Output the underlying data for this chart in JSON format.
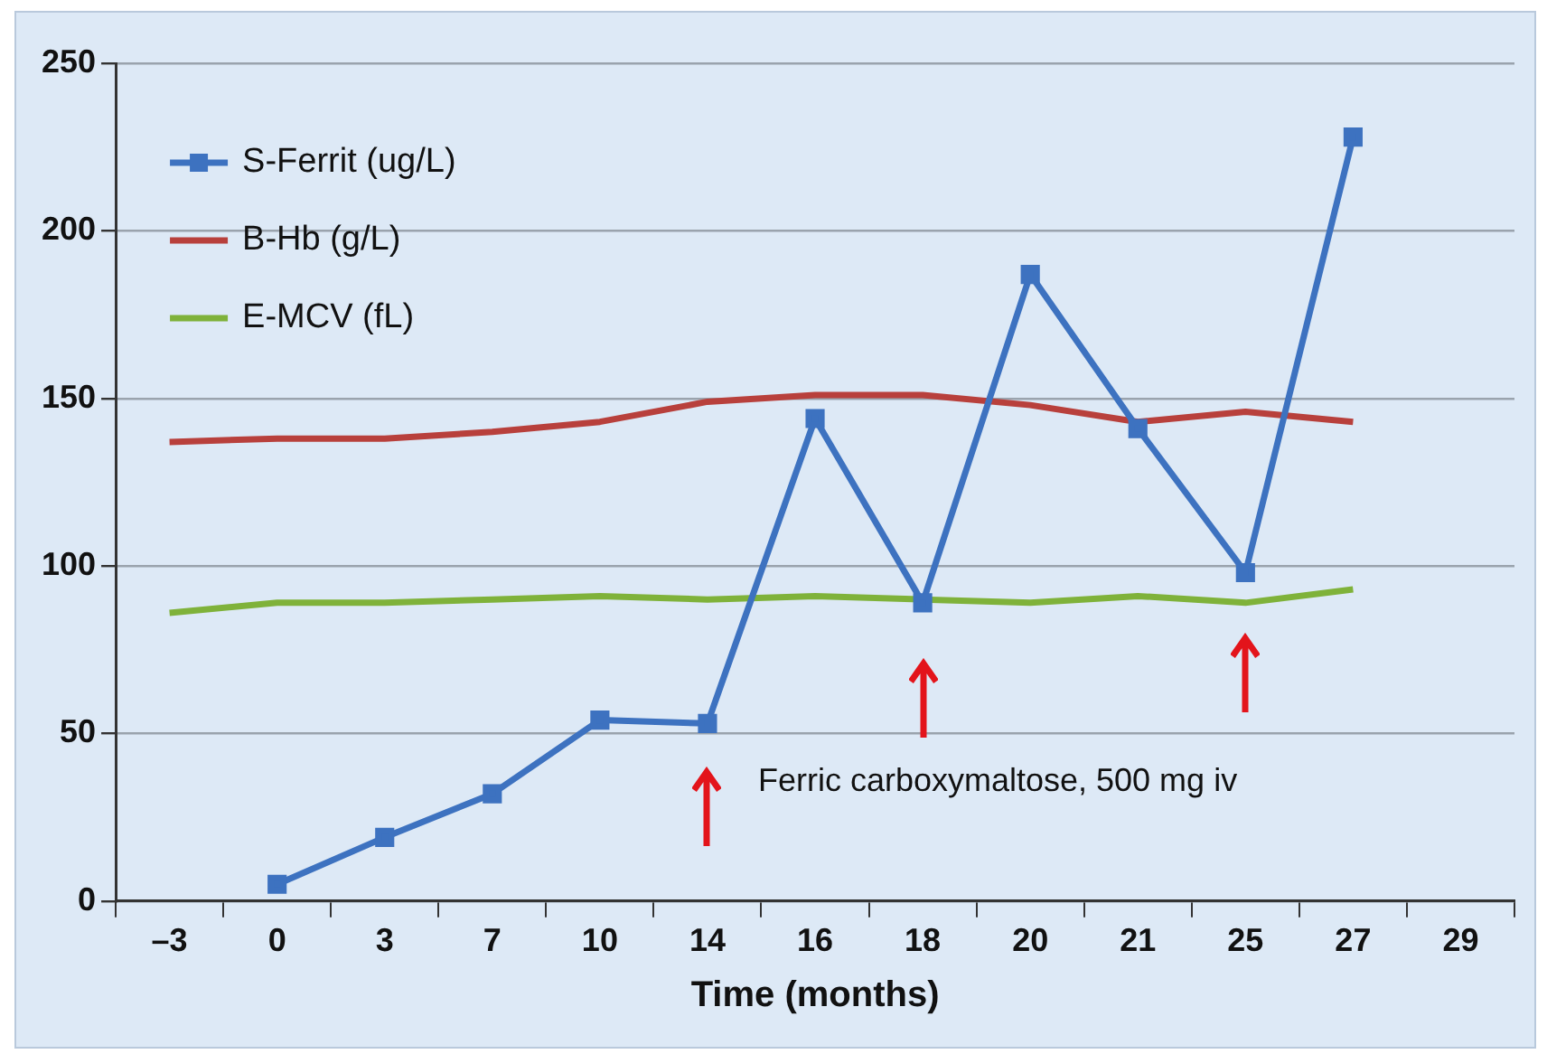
{
  "chart_data": {
    "type": "line",
    "xlabel": "Time (months)",
    "categories": [
      "–3",
      "0",
      "3",
      "7",
      "10",
      "14",
      "16",
      "18",
      "20",
      "21",
      "25",
      "27",
      "29"
    ],
    "series": [
      {
        "name": "S-Ferrit (ug/L)",
        "color": "#3d72c0",
        "marker": "square",
        "values": [
          null,
          5,
          19,
          32,
          54,
          53,
          144,
          89,
          187,
          141,
          98,
          228,
          null
        ]
      },
      {
        "name": "B-Hb (g/L)",
        "color": "#b8403c",
        "marker": "none",
        "values": [
          137,
          138,
          138,
          140,
          143,
          149,
          151,
          151,
          148,
          143,
          146,
          143,
          null
        ]
      },
      {
        "name": "E-MCV (fL)",
        "color": "#7fb23a",
        "marker": "none",
        "values": [
          86,
          89,
          89,
          90,
          91,
          90,
          91,
          90,
          89,
          91,
          89,
          93,
          null
        ]
      }
    ],
    "ylim": [
      0,
      250
    ],
    "yticks": [
      0,
      50,
      100,
      150,
      200,
      250
    ],
    "grid": "y",
    "legend": "top left",
    "annotations": [
      "Ferric carboxymaltose, 500 mg iv"
    ]
  }
}
